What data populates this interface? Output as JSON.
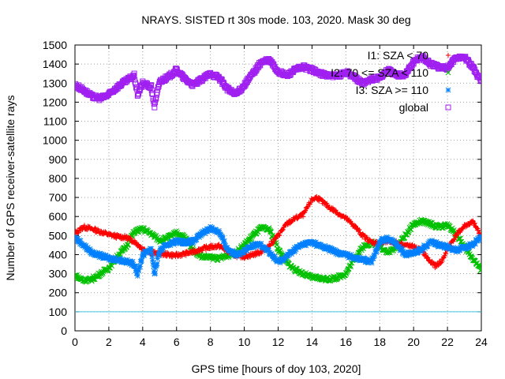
{
  "chart_data": {
    "type": "scatter",
    "title": "NRAYS. SISTED rt 30s mode. 103, 2020. Mask 30 deg",
    "xlabel": "GPS time [hours of doy 103, 2020]",
    "ylabel": "Number of GPS receiver-satellite rays",
    "xlim": [
      0,
      24
    ],
    "ylim": [
      0,
      1500
    ],
    "xticks": [
      "0",
      "2",
      "4",
      "6",
      "8",
      "10",
      "12",
      "14",
      "16",
      "18",
      "20",
      "22",
      "24"
    ],
    "yticks": [
      "0",
      "100",
      "200",
      "300",
      "400",
      "500",
      "600",
      "700",
      "800",
      "900",
      "1000",
      "1100",
      "1200",
      "1300",
      "1400",
      "1500"
    ],
    "grid": true,
    "legend_position": "top-right",
    "threshold_line": {
      "y": 100,
      "color": "#40c8e0"
    },
    "series": [
      {
        "name": "I1: SZA < 70",
        "marker": "+",
        "color": "#ff0000",
        "points": [
          [
            0,
            510
          ],
          [
            0.5,
            545
          ],
          [
            1,
            535
          ],
          [
            1.5,
            520
          ],
          [
            2,
            505
          ],
          [
            2.5,
            495
          ],
          [
            3,
            490
          ],
          [
            3.5,
            470
          ],
          [
            4,
            430
          ],
          [
            4.5,
            410
          ],
          [
            5,
            405
          ],
          [
            5.5,
            400
          ],
          [
            6,
            395
          ],
          [
            6.5,
            405
          ],
          [
            7,
            415
          ],
          [
            7.5,
            430
          ],
          [
            8,
            440
          ],
          [
            8.5,
            445
          ],
          [
            9,
            420
          ],
          [
            9.5,
            395
          ],
          [
            10,
            390
          ],
          [
            10.5,
            400
          ],
          [
            11,
            415
          ],
          [
            11.5,
            450
          ],
          [
            12,
            500
          ],
          [
            12.5,
            560
          ],
          [
            13,
            590
          ],
          [
            13.5,
            610
          ],
          [
            14,
            690
          ],
          [
            14.3,
            700
          ],
          [
            14.7,
            670
          ],
          [
            15,
            650
          ],
          [
            15.5,
            620
          ],
          [
            16,
            590
          ],
          [
            16.5,
            550
          ],
          [
            17,
            500
          ],
          [
            17.5,
            465
          ],
          [
            18,
            460
          ],
          [
            18.5,
            470
          ],
          [
            19,
            460
          ],
          [
            19.5,
            450
          ],
          [
            20,
            440
          ],
          [
            20.5,
            420
          ],
          [
            21,
            360
          ],
          [
            21.3,
            340
          ],
          [
            21.7,
            370
          ],
          [
            22,
            430
          ],
          [
            22.5,
            500
          ],
          [
            23,
            550
          ],
          [
            23.5,
            570
          ],
          [
            24,
            500
          ]
        ]
      },
      {
        "name": "I2: 70 <= SZA < 110",
        "marker": "x",
        "color": "#00c000",
        "points": [
          [
            0,
            290
          ],
          [
            0.5,
            265
          ],
          [
            1,
            270
          ],
          [
            1.5,
            300
          ],
          [
            2,
            330
          ],
          [
            2.5,
            390
          ],
          [
            3,
            440
          ],
          [
            3.5,
            520
          ],
          [
            4,
            535
          ],
          [
            4.5,
            510
          ],
          [
            5,
            475
          ],
          [
            5.5,
            490
          ],
          [
            6,
            515
          ],
          [
            6.5,
            490
          ],
          [
            7,
            420
          ],
          [
            7.5,
            390
          ],
          [
            8,
            385
          ],
          [
            8.5,
            380
          ],
          [
            9,
            395
          ],
          [
            9.5,
            410
          ],
          [
            10,
            450
          ],
          [
            10.5,
            500
          ],
          [
            11,
            540
          ],
          [
            11.5,
            530
          ],
          [
            12,
            430
          ],
          [
            12.5,
            360
          ],
          [
            13,
            320
          ],
          [
            13.5,
            300
          ],
          [
            14,
            280
          ],
          [
            14.5,
            275
          ],
          [
            15,
            270
          ],
          [
            15.5,
            280
          ],
          [
            16,
            300
          ],
          [
            16.5,
            380
          ],
          [
            17,
            440
          ],
          [
            17.5,
            465
          ],
          [
            18,
            445
          ],
          [
            18.5,
            410
          ],
          [
            19,
            440
          ],
          [
            19.5,
            500
          ],
          [
            20,
            560
          ],
          [
            20.5,
            575
          ],
          [
            21,
            560
          ],
          [
            21.5,
            545
          ],
          [
            22,
            555
          ],
          [
            22.5,
            510
          ],
          [
            23,
            440
          ],
          [
            23.5,
            380
          ],
          [
            24,
            320
          ]
        ]
      },
      {
        "name": "I3: SZA >= 110",
        "marker": "*",
        "color": "#0080ff",
        "points": [
          [
            0,
            490
          ],
          [
            0.5,
            450
          ],
          [
            1,
            410
          ],
          [
            1.5,
            395
          ],
          [
            2,
            380
          ],
          [
            2.5,
            375
          ],
          [
            3,
            365
          ],
          [
            3.5,
            350
          ],
          [
            3.7,
            295
          ],
          [
            4,
            400
          ],
          [
            4.5,
            430
          ],
          [
            4.7,
            300
          ],
          [
            5,
            420
          ],
          [
            5.5,
            455
          ],
          [
            6,
            470
          ],
          [
            6.5,
            465
          ],
          [
            7,
            470
          ],
          [
            7.5,
            510
          ],
          [
            8,
            540
          ],
          [
            8.5,
            520
          ],
          [
            9,
            430
          ],
          [
            9.5,
            400
          ],
          [
            10,
            420
          ],
          [
            10.5,
            445
          ],
          [
            11,
            455
          ],
          [
            11.5,
            410
          ],
          [
            12,
            360
          ],
          [
            12.5,
            390
          ],
          [
            13,
            430
          ],
          [
            13.5,
            455
          ],
          [
            14,
            465
          ],
          [
            14.5,
            445
          ],
          [
            15,
            430
          ],
          [
            15.5,
            410
          ],
          [
            16,
            400
          ],
          [
            16.5,
            385
          ],
          [
            17,
            375
          ],
          [
            17.5,
            360
          ],
          [
            18,
            470
          ],
          [
            18.5,
            485
          ],
          [
            19,
            455
          ],
          [
            19.5,
            400
          ],
          [
            20,
            410
          ],
          [
            20.5,
            430
          ],
          [
            21,
            470
          ],
          [
            21.5,
            450
          ],
          [
            22,
            440
          ],
          [
            22.5,
            425
          ],
          [
            23,
            435
          ],
          [
            23.5,
            455
          ],
          [
            24,
            490
          ]
        ]
      },
      {
        "name": "global",
        "marker": "square",
        "color": "#a020f0",
        "points": [
          [
            0,
            1290
          ],
          [
            0.5,
            1265
          ],
          [
            1,
            1230
          ],
          [
            1.5,
            1220
          ],
          [
            2,
            1240
          ],
          [
            2.5,
            1280
          ],
          [
            3,
            1310
          ],
          [
            3.5,
            1340
          ],
          [
            3.7,
            1240
          ],
          [
            4,
            1300
          ],
          [
            4.5,
            1280
          ],
          [
            4.7,
            1180
          ],
          [
            5,
            1310
          ],
          [
            5.5,
            1330
          ],
          [
            6,
            1370
          ],
          [
            6.5,
            1320
          ],
          [
            7,
            1290
          ],
          [
            7.5,
            1320
          ],
          [
            8,
            1350
          ],
          [
            8.5,
            1330
          ],
          [
            9,
            1270
          ],
          [
            9.5,
            1240
          ],
          [
            10,
            1290
          ],
          [
            10.5,
            1350
          ],
          [
            11,
            1410
          ],
          [
            11.5,
            1420
          ],
          [
            12,
            1360
          ],
          [
            12.5,
            1340
          ],
          [
            13,
            1370
          ],
          [
            13.5,
            1385
          ],
          [
            14,
            1370
          ],
          [
            14.5,
            1350
          ],
          [
            15,
            1340
          ],
          [
            15.5,
            1335
          ],
          [
            16,
            1360
          ],
          [
            16.5,
            1330
          ],
          [
            17,
            1300
          ],
          [
            17.5,
            1320
          ],
          [
            18,
            1330
          ],
          [
            18.5,
            1370
          ],
          [
            19,
            1340
          ],
          [
            19.5,
            1345
          ],
          [
            20,
            1410
          ],
          [
            20.5,
            1440
          ],
          [
            21,
            1400
          ],
          [
            21.5,
            1385
          ],
          [
            22,
            1380
          ],
          [
            22.5,
            1430
          ],
          [
            23,
            1440
          ],
          [
            23.5,
            1380
          ],
          [
            24,
            1310
          ]
        ]
      }
    ]
  }
}
